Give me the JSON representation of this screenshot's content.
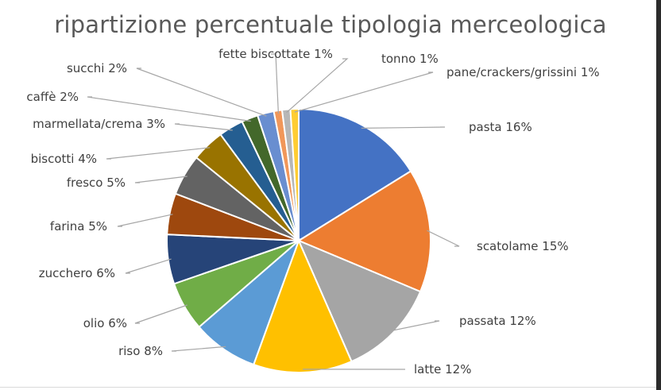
{
  "chart_data": {
    "type": "pie",
    "title": "ripartizione percentuale tipologia merceologica",
    "slices": [
      {
        "label": "pasta 16%",
        "value": 16,
        "color": "#4472C4"
      },
      {
        "label": "scatolame 15%",
        "value": 15,
        "color": "#ED7D31"
      },
      {
        "label": "passata 12%",
        "value": 12,
        "color": "#A5A5A5"
      },
      {
        "label": "latte 12%",
        "value": 12,
        "color": "#FFC000"
      },
      {
        "label": "riso 8%",
        "value": 8,
        "color": "#5B9BD5"
      },
      {
        "label": "olio 6%",
        "value": 6,
        "color": "#70AD47"
      },
      {
        "label": "zucchero 6%",
        "value": 6,
        "color": "#264478"
      },
      {
        "label": "farina 5%",
        "value": 5,
        "color": "#9E480E"
      },
      {
        "label": "fresco 5%",
        "value": 5,
        "color": "#636363"
      },
      {
        "label": "biscotti 4%",
        "value": 4,
        "color": "#997300"
      },
      {
        "label": "marmellata/crema 3%",
        "value": 3,
        "color": "#255E91"
      },
      {
        "label": "caffè 2%",
        "value": 2,
        "color": "#43682B"
      },
      {
        "label": "succhi 2%",
        "value": 2,
        "color": "#698ED0"
      },
      {
        "label": "fette biscottate 1%",
        "value": 1,
        "color": "#F1975A"
      },
      {
        "label": "tonno 1%",
        "value": 1,
        "color": "#B7B7B7"
      },
      {
        "label": "pane/crackers/grissini 1%",
        "value": 1,
        "color": "#FFCD33"
      }
    ]
  }
}
